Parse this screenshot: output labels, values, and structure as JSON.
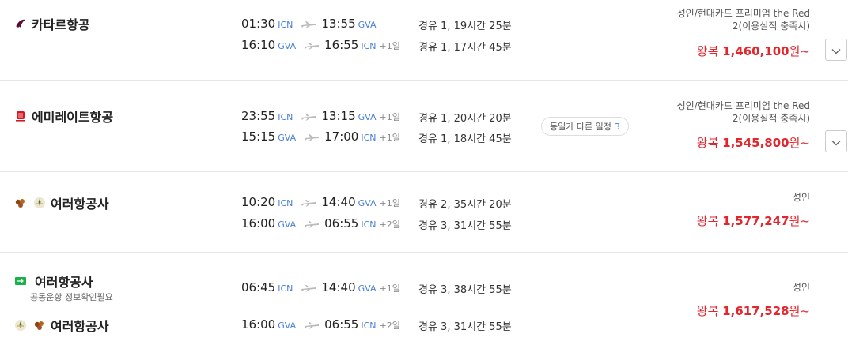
{
  "results": [
    {
      "airlines": [
        {
          "name": "카타르항공",
          "icon": "qatar-airways-logo"
        }
      ],
      "legs": [
        {
          "dep_time": "01:30",
          "dep_code": "ICN",
          "arr_time": "13:55",
          "arr_code": "GVA",
          "day_offset": "",
          "duration": "경유 1, 19시간 25분"
        },
        {
          "dep_time": "16:10",
          "dep_code": "GVA",
          "arr_time": "16:55",
          "arr_code": "ICN",
          "day_offset": "+1일",
          "duration": "경유 1, 17시간 45분"
        }
      ],
      "fare_type_line1": "성인/현대카드 프리미엄 the Red",
      "fare_type_line2": "2(이용실적 충족시)",
      "price_prefix": "왕복",
      "price": "1,460,100",
      "price_suffix": "원~"
    },
    {
      "airlines": [
        {
          "name": "에미레이트항공",
          "icon": "emirates-logo"
        }
      ],
      "legs": [
        {
          "dep_time": "23:55",
          "dep_code": "ICN",
          "arr_time": "13:15",
          "arr_code": "GVA",
          "day_offset": "+1일",
          "duration": "경유 1, 20시간 20분"
        },
        {
          "dep_time": "15:15",
          "dep_code": "GVA",
          "arr_time": "17:00",
          "arr_code": "ICN",
          "day_offset": "+1일",
          "duration": "경유 1, 18시간 45분"
        }
      ],
      "badge_label": "동일가 다른 일정",
      "badge_count": "3",
      "fare_type_line1": "성인/현대카드 프리미엄 the Red",
      "fare_type_line2": "2(이용실적 충족시)",
      "price_prefix": "왕복",
      "price": "1,545,800",
      "price_suffix": "원~"
    },
    {
      "airlines": [
        {
          "name": "여러항공사",
          "icon": "multiple-airlines-logo"
        }
      ],
      "legs": [
        {
          "dep_time": "10:20",
          "dep_code": "ICN",
          "arr_time": "14:40",
          "arr_code": "GVA",
          "day_offset": "+1일",
          "duration": "경유 2, 35시간 20분"
        },
        {
          "dep_time": "16:00",
          "dep_code": "GVA",
          "arr_time": "06:55",
          "arr_code": "ICN",
          "day_offset": "+2일",
          "duration": "경유 3, 31시간 55분"
        }
      ],
      "fare_type_line1": "성인",
      "price_prefix": "왕복",
      "price": "1,577,247",
      "price_suffix": "원~"
    },
    {
      "airlines": [
        {
          "name": "여러항공사",
          "icon": "multiple-airlines-logo",
          "note": "공동운항 정보확인필요"
        },
        {
          "name": "여러항공사",
          "icon": "multiple-airlines-logo"
        }
      ],
      "legs": [
        {
          "dep_time": "06:45",
          "dep_code": "ICN",
          "arr_time": "14:40",
          "arr_code": "GVA",
          "day_offset": "+1일",
          "duration": "경유 3, 38시간 55분"
        },
        {
          "dep_time": "16:00",
          "dep_code": "GVA",
          "arr_time": "06:55",
          "arr_code": "ICN",
          "day_offset": "+2일",
          "duration": "경유 3, 31시간 55분"
        }
      ],
      "fare_type_line1": "성인",
      "price_prefix": "왕복",
      "price": "1,617,528",
      "price_suffix": "원~"
    }
  ],
  "colors": {
    "price": "#e4262c",
    "airport_code": "#4a7fd4",
    "badge_count": "#3a7be0"
  }
}
